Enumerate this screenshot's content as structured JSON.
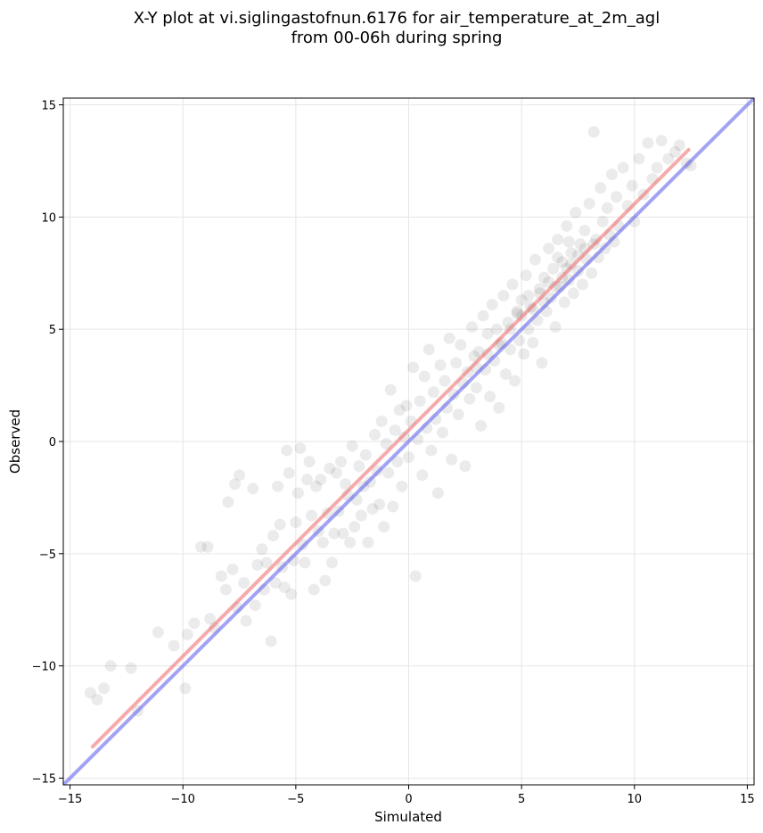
{
  "chart_data": {
    "type": "scatter",
    "title_line1": "X-Y plot at vi.siglingastofnun.6176 for air_temperature_at_2m_agl",
    "title_line2": "from 00-06h during spring",
    "xlabel": "Simulated",
    "ylabel": "Observed",
    "xlim": [
      -15.3,
      15.3
    ],
    "ylim": [
      -15.3,
      15.3
    ],
    "xticks": [
      -15,
      -10,
      -5,
      0,
      5,
      10,
      15
    ],
    "yticks": [
      -15,
      -10,
      -5,
      0,
      5,
      10,
      15
    ],
    "xtick_labels": [
      "−15",
      "−10",
      "−5",
      "0",
      "5",
      "10",
      "15"
    ],
    "ytick_labels": [
      "−15",
      "−10",
      "−5",
      "0",
      "5",
      "10",
      "15"
    ],
    "grid": true,
    "point_color": "#000000",
    "point_opacity": 0.08,
    "points": [
      [
        -14.1,
        -11.2
      ],
      [
        -13.8,
        -11.5
      ],
      [
        -13.5,
        -11.0
      ],
      [
        -13.2,
        -10.0
      ],
      [
        -12.3,
        -10.1
      ],
      [
        -12.0,
        -12.0
      ],
      [
        -11.1,
        -8.5
      ],
      [
        -10.4,
        -9.1
      ],
      [
        -9.9,
        -11.0
      ],
      [
        -9.8,
        -8.6
      ],
      [
        -9.5,
        -8.1
      ],
      [
        -9.2,
        -4.7
      ],
      [
        -8.9,
        -4.7
      ],
      [
        -8.8,
        -7.9
      ],
      [
        -8.6,
        -8.3
      ],
      [
        -8.3,
        -6.0
      ],
      [
        -8.1,
        -6.6
      ],
      [
        -8.0,
        -2.7
      ],
      [
        -7.8,
        -5.7
      ],
      [
        -7.7,
        -1.9
      ],
      [
        -7.6,
        -7.4
      ],
      [
        -7.5,
        -1.5
      ],
      [
        -7.3,
        -6.3
      ],
      [
        -7.2,
        -8.0
      ],
      [
        -6.9,
        -2.1
      ],
      [
        -6.8,
        -7.3
      ],
      [
        -6.7,
        -5.5
      ],
      [
        -6.5,
        -4.8
      ],
      [
        -6.4,
        -6.6
      ],
      [
        -6.3,
        -5.4
      ],
      [
        -6.1,
        -8.9
      ],
      [
        -6.0,
        -4.2
      ],
      [
        -5.9,
        -6.3
      ],
      [
        -5.8,
        -2.0
      ],
      [
        -5.7,
        -3.7
      ],
      [
        -5.6,
        -5.6
      ],
      [
        -5.5,
        -6.5
      ],
      [
        -5.4,
        -0.4
      ],
      [
        -5.3,
        -1.4
      ],
      [
        -5.2,
        -6.8
      ],
      [
        -5.1,
        -5.3
      ],
      [
        -5.0,
        -3.6
      ],
      [
        -4.9,
        -2.3
      ],
      [
        -4.8,
        -0.3
      ],
      [
        -4.7,
        -4.6
      ],
      [
        -4.6,
        -5.4
      ],
      [
        -4.5,
        -1.7
      ],
      [
        -4.4,
        -0.9
      ],
      [
        -4.3,
        -3.3
      ],
      [
        -4.2,
        -6.6
      ],
      [
        -4.1,
        -2.0
      ],
      [
        -4.0,
        -4.0
      ],
      [
        -3.9,
        -1.7
      ],
      [
        -3.8,
        -4.5
      ],
      [
        -3.7,
        -6.2
      ],
      [
        -3.6,
        -3.2
      ],
      [
        -3.5,
        -1.2
      ],
      [
        -3.4,
        -5.4
      ],
      [
        -3.3,
        -4.1
      ],
      [
        -3.2,
        -1.4
      ],
      [
        -3.1,
        -3.1
      ],
      [
        -3.0,
        -0.9
      ],
      [
        -2.9,
        -4.1
      ],
      [
        -2.8,
        -1.9
      ],
      [
        -2.7,
        -2.4
      ],
      [
        -2.6,
        -4.5
      ],
      [
        -2.5,
        -0.2
      ],
      [
        -2.4,
        -3.8
      ],
      [
        -2.3,
        -2.6
      ],
      [
        -2.2,
        -1.1
      ],
      [
        -2.1,
        -3.3
      ],
      [
        -2.0,
        -2.0
      ],
      [
        -1.9,
        -0.6
      ],
      [
        -1.8,
        -4.5
      ],
      [
        -1.7,
        -1.8
      ],
      [
        -1.6,
        -3.0
      ],
      [
        -1.5,
        0.3
      ],
      [
        -1.4,
        -1.3
      ],
      [
        -1.3,
        -2.8
      ],
      [
        -1.2,
        0.9
      ],
      [
        -1.1,
        -3.8
      ],
      [
        -1.0,
        -0.1
      ],
      [
        -0.9,
        -1.4
      ],
      [
        -0.8,
        2.3
      ],
      [
        -0.7,
        -2.9
      ],
      [
        -0.6,
        0.5
      ],
      [
        -0.5,
        -0.9
      ],
      [
        -0.4,
        1.4
      ],
      [
        -0.3,
        -2.0
      ],
      [
        -0.2,
        0.2
      ],
      [
        -0.1,
        1.6
      ],
      [
        0.0,
        -0.7
      ],
      [
        0.1,
        0.9
      ],
      [
        0.2,
        3.3
      ],
      [
        0.3,
        -6.0
      ],
      [
        0.4,
        0.1
      ],
      [
        0.5,
        1.8
      ],
      [
        0.6,
        -1.5
      ],
      [
        0.7,
        2.9
      ],
      [
        0.8,
        0.6
      ],
      [
        0.9,
        4.1
      ],
      [
        1.0,
        -0.4
      ],
      [
        1.1,
        2.2
      ],
      [
        1.2,
        1.0
      ],
      [
        1.3,
        -2.3
      ],
      [
        1.4,
        3.4
      ],
      [
        1.5,
        0.4
      ],
      [
        1.6,
        2.7
      ],
      [
        1.7,
        1.5
      ],
      [
        1.8,
        4.6
      ],
      [
        1.9,
        -0.8
      ],
      [
        2.0,
        2.1
      ],
      [
        2.1,
        3.5
      ],
      [
        2.2,
        1.2
      ],
      [
        2.3,
        4.3
      ],
      [
        2.4,
        2.6
      ],
      [
        2.5,
        -1.1
      ],
      [
        2.6,
        3.1
      ],
      [
        2.7,
        1.9
      ],
      [
        2.8,
        5.1
      ],
      [
        2.9,
        3.8
      ],
      [
        3.0,
        2.4
      ],
      [
        3.1,
        4.0
      ],
      [
        3.2,
        0.7
      ],
      [
        3.3,
        5.6
      ],
      [
        3.4,
        3.2
      ],
      [
        3.5,
        4.8
      ],
      [
        3.6,
        2.0
      ],
      [
        3.7,
        6.1
      ],
      [
        3.8,
        3.6
      ],
      [
        3.9,
        5.0
      ],
      [
        4.0,
        1.5
      ],
      [
        4.1,
        4.4
      ],
      [
        4.2,
        6.5
      ],
      [
        4.3,
        3.0
      ],
      [
        4.4,
        5.3
      ],
      [
        4.5,
        4.1
      ],
      [
        4.6,
        7.0
      ],
      [
        4.7,
        2.7
      ],
      [
        4.8,
        5.7
      ],
      [
        4.9,
        4.5
      ],
      [
        5.0,
        6.3
      ],
      [
        5.1,
        3.9
      ],
      [
        5.2,
        7.4
      ],
      [
        5.3,
        5.0
      ],
      [
        5.4,
        6.0
      ],
      [
        5.5,
        4.4
      ],
      [
        5.6,
        8.1
      ],
      [
        5.7,
        5.4
      ],
      [
        5.8,
        6.8
      ],
      [
        5.9,
        3.5
      ],
      [
        6.0,
        7.3
      ],
      [
        6.1,
        5.8
      ],
      [
        6.2,
        8.6
      ],
      [
        6.3,
        6.4
      ],
      [
        6.4,
        7.7
      ],
      [
        6.5,
        5.1
      ],
      [
        6.6,
        9.0
      ],
      [
        6.7,
        6.9
      ],
      [
        6.8,
        8.0
      ],
      [
        6.9,
        6.2
      ],
      [
        7.0,
        9.6
      ],
      [
        7.1,
        7.2
      ],
      [
        7.2,
        8.4
      ],
      [
        7.3,
        6.6
      ],
      [
        7.4,
        10.2
      ],
      [
        7.5,
        7.6
      ],
      [
        7.6,
        8.8
      ],
      [
        7.7,
        7.0
      ],
      [
        7.8,
        9.4
      ],
      [
        7.9,
        8.1
      ],
      [
        8.0,
        10.6
      ],
      [
        8.1,
        7.5
      ],
      [
        8.2,
        13.8
      ],
      [
        8.3,
        9.0
      ],
      [
        8.4,
        8.2
      ],
      [
        8.5,
        11.3
      ],
      [
        8.6,
        9.8
      ],
      [
        8.7,
        8.6
      ],
      [
        8.8,
        10.4
      ],
      [
        8.9,
        9.2
      ],
      [
        9.0,
        11.9
      ],
      [
        9.1,
        8.9
      ],
      [
        9.2,
        10.9
      ],
      [
        9.3,
        9.6
      ],
      [
        9.5,
        12.2
      ],
      [
        9.7,
        10.5
      ],
      [
        9.9,
        11.4
      ],
      [
        10.0,
        9.8
      ],
      [
        10.2,
        12.6
      ],
      [
        10.4,
        11.0
      ],
      [
        10.6,
        13.3
      ],
      [
        10.8,
        11.7
      ],
      [
        11.0,
        12.2
      ],
      [
        11.2,
        13.4
      ],
      [
        11.5,
        12.6
      ],
      [
        11.8,
        12.9
      ],
      [
        12.0,
        13.2
      ],
      [
        12.3,
        12.4
      ],
      [
        12.5,
        12.3
      ],
      [
        6.0,
        6.2
      ],
      [
        6.5,
        6.9
      ],
      [
        7.0,
        7.7
      ],
      [
        7.5,
        8.3
      ],
      [
        5.5,
        5.9
      ],
      [
        5.0,
        5.6
      ],
      [
        4.5,
        5.0
      ],
      [
        4.0,
        4.3
      ],
      [
        3.5,
        3.9
      ],
      [
        3.0,
        3.3
      ],
      [
        6.2,
        7.1
      ],
      [
        6.8,
        7.3
      ],
      [
        7.2,
        7.9
      ],
      [
        7.8,
        8.6
      ],
      [
        8.2,
        8.8
      ],
      [
        5.8,
        6.6
      ],
      [
        5.3,
        6.5
      ],
      [
        4.8,
        5.8
      ],
      [
        6.6,
        8.2
      ],
      [
        7.1,
        8.9
      ]
    ],
    "fit_line": {
      "color": "#ee6666",
      "x": [
        -14.0,
        12.4
      ],
      "y": [
        -13.6,
        13.0
      ]
    },
    "identity_line": {
      "color": "#6666ee",
      "x": [
        -15.3,
        15.3
      ],
      "y": [
        -15.3,
        15.3
      ]
    }
  }
}
